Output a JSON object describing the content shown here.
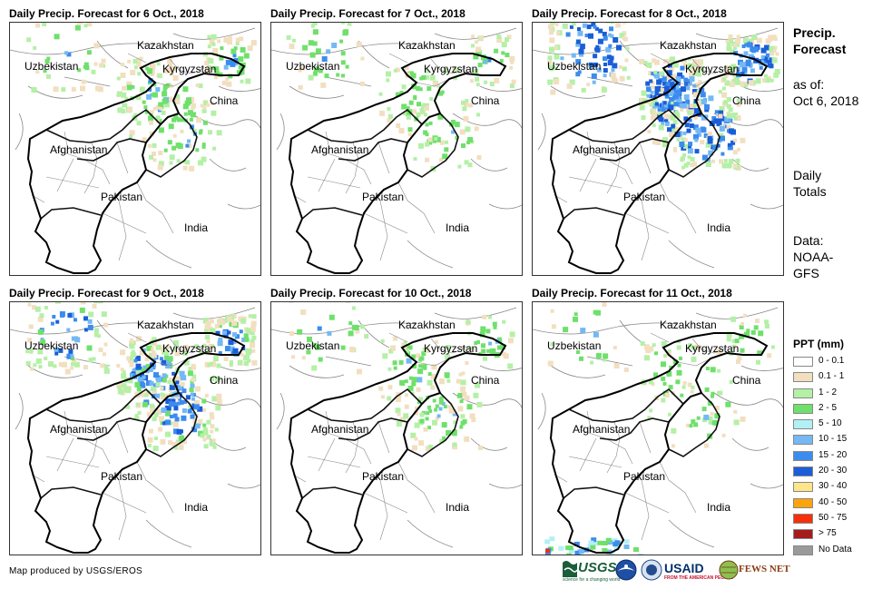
{
  "panels": [
    {
      "title": "Daily Precip. Forecast for 6 Oct., 2018",
      "intensity": 1
    },
    {
      "title": "Daily Precip. Forecast for 7 Oct., 2018",
      "intensity": 0.7
    },
    {
      "title": "Daily Precip. Forecast for 8 Oct., 2018",
      "intensity": 2.2
    },
    {
      "title": "Daily Precip. Forecast for 9 Oct., 2018",
      "intensity": 1.8
    },
    {
      "title": "Daily Precip. Forecast for 10 Oct., 2018",
      "intensity": 0.8
    },
    {
      "title": "Daily Precip. Forecast for 11 Oct., 2018",
      "intensity": 0.5
    }
  ],
  "map_labels": {
    "kazakhstan": "Kazakhstan",
    "uzbekistan": "Uzbekistan",
    "kyrgyzstan": "Kyrgyzstan",
    "china": "China",
    "afghanistan": "Afghanistan",
    "pakistan": "Pakistan",
    "india": "India"
  },
  "side": {
    "title_line1": "Precip.",
    "title_line2": "Forecast",
    "asof_line1": "as of:",
    "asof_line2": "Oct 6, 2018",
    "totals_line1": "Daily",
    "totals_line2": "Totals",
    "data_line1": "Data:",
    "data_line2": "NOAA-",
    "data_line3": "GFS"
  },
  "legend": {
    "title": "PPT (mm)",
    "items": [
      {
        "label": "0 - 0.1",
        "color": "#ffffff"
      },
      {
        "label": "0.1 - 1",
        "color": "#f2dfc0"
      },
      {
        "label": "1 - 2",
        "color": "#b4f0a6"
      },
      {
        "label": "2 - 5",
        "color": "#6fe06b"
      },
      {
        "label": "5 - 10",
        "color": "#b2f0f6"
      },
      {
        "label": "10 - 15",
        "color": "#74b8f4"
      },
      {
        "label": "15 - 20",
        "color": "#3c8ced"
      },
      {
        "label": "20 - 30",
        "color": "#1a5ed8"
      },
      {
        "label": "30 - 40",
        "color": "#fde58a"
      },
      {
        "label": "40 - 50",
        "color": "#fba40e"
      },
      {
        "label": "50 - 75",
        "color": "#f5300a"
      },
      {
        "label": "> 75",
        "color": "#a41c1c"
      },
      {
        "label": "No Data",
        "color": "#9a9a9a"
      }
    ]
  },
  "footer": "Map produced by USGS/EROS",
  "logos": {
    "usgs": "USGS",
    "usgs_tagline": "science for a changing world",
    "usaid": "USAID",
    "usaid_tagline": "FROM THE AMERICAN PEOPLE",
    "fewsnet": "FEWS NET"
  }
}
